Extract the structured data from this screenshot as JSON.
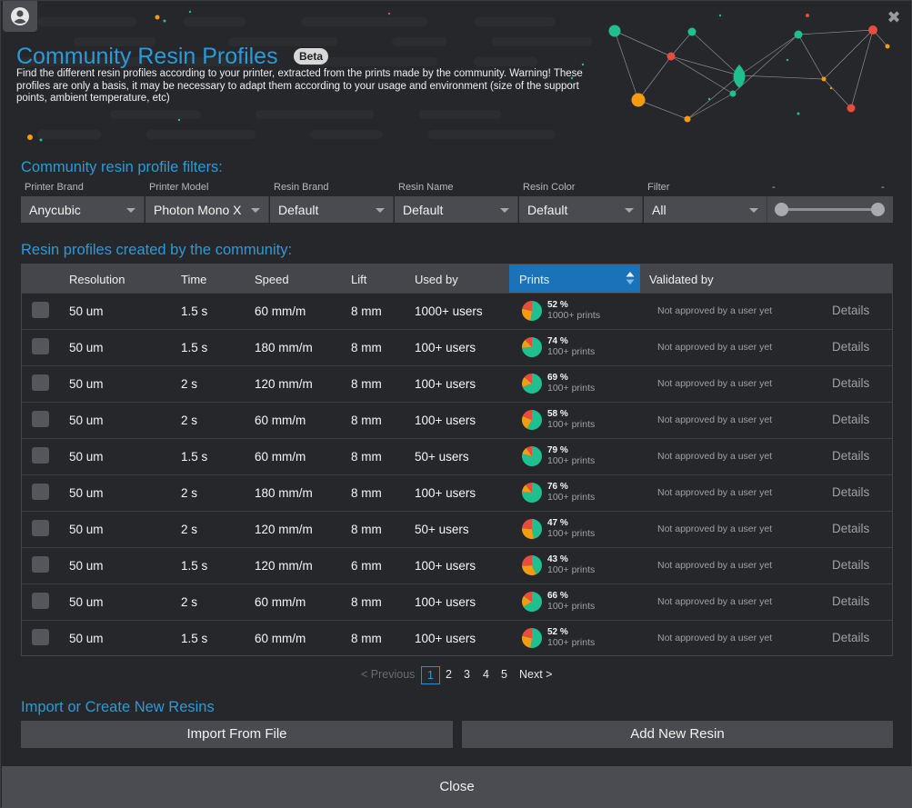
{
  "header": {
    "title": "Community Resin Profiles",
    "badge": "Beta",
    "description": "Find the different resin profiles according to your printer, extracted from the prints made by the community. Warning! These profiles are only a basis, it may be necessary to adapt them according to your usage and environment (size of the support points, ambient temperature, etc)",
    "user_icon": "user-circle-icon",
    "close_icon": "close-icon",
    "close_symbol": "✖"
  },
  "filters": {
    "section_title": "Community resin profile filters:",
    "items": [
      {
        "label": "Printer Brand",
        "value": "Anycubic"
      },
      {
        "label": "Printer Model",
        "value": "Photon Mono X"
      },
      {
        "label": "Resin Brand",
        "value": "Default"
      },
      {
        "label": "Resin Name",
        "value": "Default"
      },
      {
        "label": "Resin Color",
        "value": "Default"
      },
      {
        "label": "Filter",
        "value": "All"
      }
    ],
    "slider_label_left": "-",
    "slider_label_right": "-"
  },
  "table": {
    "section_title": "Resin profiles created by the community:",
    "columns": [
      "Resolution",
      "Time",
      "Speed",
      "Lift",
      "Used by",
      "Prints",
      "Validated by"
    ],
    "sorted_column": "Prints",
    "rows": [
      {
        "resolution": "50 um",
        "time": "1.5 s",
        "speed": "60 mm/m",
        "lift": "8 mm",
        "used_by": "1000+ users",
        "pct": "52 %",
        "pct_value": 52,
        "prints": "1000+ prints",
        "validated": "Not approved by a user yet",
        "details": "Details"
      },
      {
        "resolution": "50 um",
        "time": "1.5 s",
        "speed": "180 mm/m",
        "lift": "8 mm",
        "used_by": "100+ users",
        "pct": "74 %",
        "pct_value": 74,
        "prints": "100+ prints",
        "validated": "Not approved by a user yet",
        "details": "Details"
      },
      {
        "resolution": "50 um",
        "time": "2 s",
        "speed": "120 mm/m",
        "lift": "8 mm",
        "used_by": "100+ users",
        "pct": "69 %",
        "pct_value": 69,
        "prints": "100+ prints",
        "validated": "Not approved by a user yet",
        "details": "Details"
      },
      {
        "resolution": "50 um",
        "time": "2 s",
        "speed": "60 mm/m",
        "lift": "8 mm",
        "used_by": "100+ users",
        "pct": "58 %",
        "pct_value": 58,
        "prints": "100+ prints",
        "validated": "Not approved by a user yet",
        "details": "Details"
      },
      {
        "resolution": "50 um",
        "time": "1.5 s",
        "speed": "60 mm/m",
        "lift": "8 mm",
        "used_by": "50+ users",
        "pct": "79 %",
        "pct_value": 79,
        "prints": "100+ prints",
        "validated": "Not approved by a user yet",
        "details": "Details"
      },
      {
        "resolution": "50 um",
        "time": "2 s",
        "speed": "180 mm/m",
        "lift": "8 mm",
        "used_by": "100+ users",
        "pct": "76 %",
        "pct_value": 76,
        "prints": "100+ prints",
        "validated": "Not approved by a user yet",
        "details": "Details"
      },
      {
        "resolution": "50 um",
        "time": "2 s",
        "speed": "120 mm/m",
        "lift": "8 mm",
        "used_by": "50+ users",
        "pct": "47 %",
        "pct_value": 47,
        "prints": "100+ prints",
        "validated": "Not approved by a user yet",
        "details": "Details"
      },
      {
        "resolution": "50 um",
        "time": "1.5 s",
        "speed": "120 mm/m",
        "lift": "6 mm",
        "used_by": "100+ users",
        "pct": "43 %",
        "pct_value": 43,
        "prints": "100+ prints",
        "validated": "Not approved by a user yet",
        "details": "Details"
      },
      {
        "resolution": "50 um",
        "time": "2 s",
        "speed": "60 mm/m",
        "lift": "8 mm",
        "used_by": "100+ users",
        "pct": "66 %",
        "pct_value": 66,
        "prints": "100+ prints",
        "validated": "Not approved by a user yet",
        "details": "Details"
      },
      {
        "resolution": "50 um",
        "time": "1.5 s",
        "speed": "60 mm/m",
        "lift": "8 mm",
        "used_by": "100+ users",
        "pct": "52 %",
        "pct_value": 52,
        "prints": "100+ prints",
        "validated": "Not approved by a user yet",
        "details": "Details"
      }
    ]
  },
  "pagination": {
    "previous": "< Previous",
    "pages": [
      "1",
      "2",
      "3",
      "4",
      "5"
    ],
    "current": "1",
    "next": "Next >"
  },
  "import": {
    "section_title": "Import or Create New Resins",
    "import_button": "Import From File",
    "add_button": "Add New Resin"
  },
  "footer": {
    "close_button": "Close"
  },
  "colors": {
    "accent": "#2a9bd8",
    "pie_green": "#1fbf8f",
    "pie_orange": "#f39c12",
    "pie_red": "#e74c3c"
  }
}
